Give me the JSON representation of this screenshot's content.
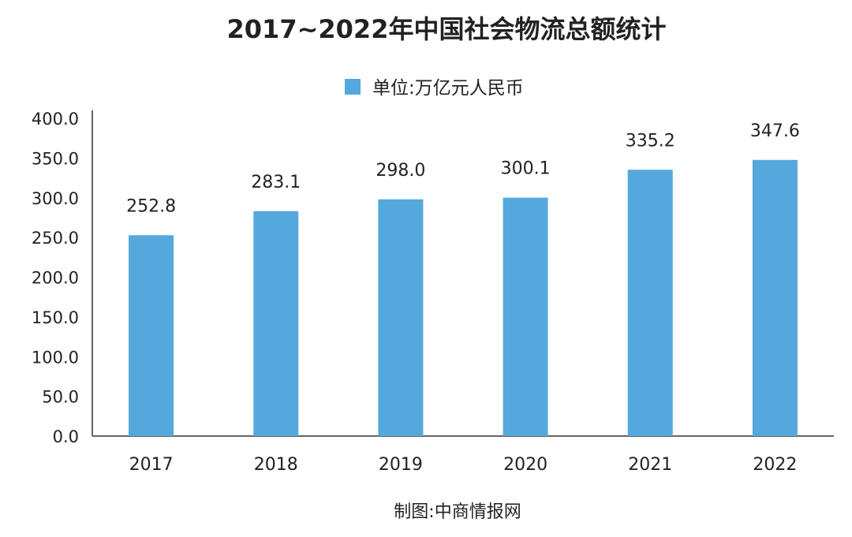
{
  "chart_data": {
    "type": "bar",
    "title": "2017~2022年中国社会物流总额统计",
    "legend": {
      "label": "单位:万亿元人民币",
      "placement": "top-center"
    },
    "categories": [
      "2017",
      "2018",
      "2019",
      "2020",
      "2021",
      "2022"
    ],
    "series": [
      {
        "name": "单位:万亿元人民币",
        "values": [
          252.8,
          283.1,
          298.0,
          300.1,
          335.2,
          347.6
        ],
        "color": "#55a8dc"
      }
    ],
    "data_labels": [
      "252.8",
      "283.1",
      "298.0",
      "300.1",
      "335.2",
      "347.6"
    ],
    "yticks": [
      "0.0",
      "50.0",
      "100.0",
      "150.0",
      "200.0",
      "250.0",
      "300.0",
      "350.0",
      "400.0"
    ],
    "ylim": [
      0,
      400
    ],
    "xlabel": "",
    "ylabel": "",
    "grid": false,
    "source": "制图:中商情报网"
  }
}
